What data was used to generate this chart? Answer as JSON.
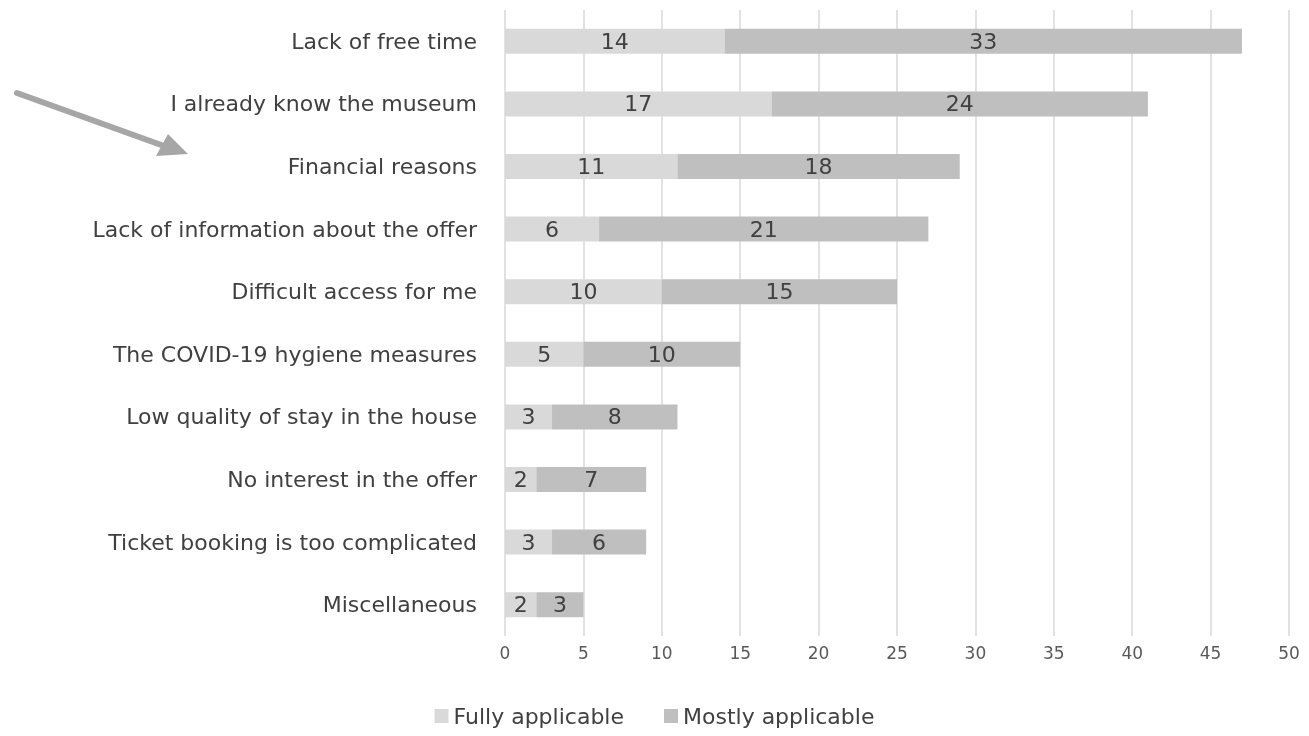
{
  "chart_data": {
    "type": "bar",
    "orientation": "horizontal",
    "stacked": true,
    "categories": [
      "Lack of free time",
      "I already know the museum",
      "Financial reasons",
      "Lack of information about the offer",
      "Difficult access for me",
      "The COVID-19 hygiene measures",
      "Low quality of stay in the house",
      "No interest in the offer",
      "Ticket booking is too complicated",
      "Miscellaneous"
    ],
    "series": [
      {
        "name": "Fully applicable",
        "color": "#d9d9d9",
        "values": [
          14,
          17,
          11,
          6,
          10,
          5,
          3,
          2,
          3,
          2
        ]
      },
      {
        "name": "Mostly applicable",
        "color": "#bfbfbf",
        "values": [
          33,
          24,
          18,
          21,
          15,
          10,
          8,
          7,
          6,
          3
        ]
      }
    ],
    "xlim": [
      0,
      50
    ],
    "xticks": [
      0,
      5,
      10,
      15,
      20,
      25,
      30,
      35,
      40,
      45,
      50
    ],
    "data_labels": true,
    "grid": "x",
    "legend": "bottom"
  }
}
